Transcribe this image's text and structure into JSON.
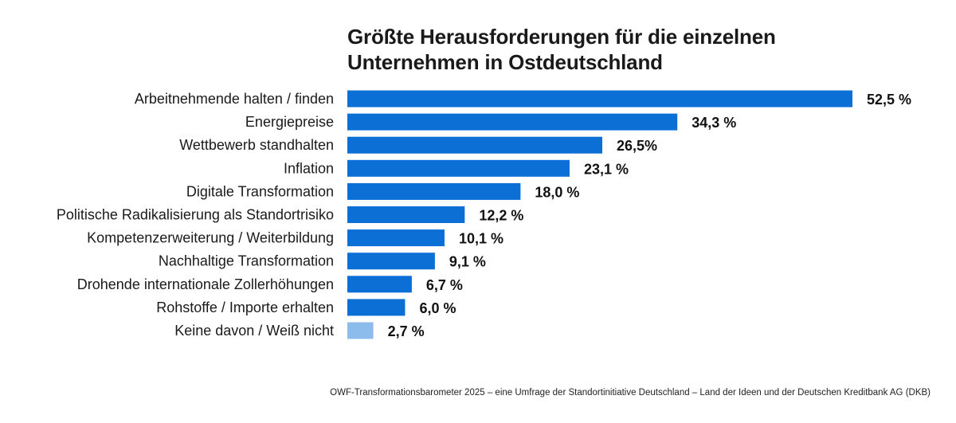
{
  "chart_data": {
    "type": "bar",
    "orientation": "horizontal",
    "title_lines": [
      "Größte Herausforderungen für die einzelnen",
      "Unternehmen in Ostdeutschland"
    ],
    "categories": [
      "Arbeitnehmende halten / finden",
      "Energiepreise",
      "Wettbewerb standhalten",
      "Inflation",
      "Digitale Transformation",
      "Politische Radikalisierung als Standortrisiko",
      "Kompetenzerweiterung / Weiterbildung",
      "Nachhaltige Transformation",
      "Drohende internationale Zollerhöhungen",
      "Rohstoffe / Importe erhalten",
      "Keine davon / Weiß nicht"
    ],
    "values": [
      52.5,
      34.3,
      26.5,
      23.1,
      18.0,
      12.2,
      10.1,
      9.1,
      6.7,
      6.0,
      2.7
    ],
    "value_labels": [
      "52,5 %",
      "34,3 %",
      "26,5%",
      "23,1 %",
      "18,0 %",
      "12,2 %",
      "10,1 %",
      "9,1 %",
      "6,7 %",
      "6,0 %",
      "2,7 %"
    ],
    "unit": "%",
    "xlim": [
      0,
      52.5
    ],
    "grid": false,
    "legend": "none",
    "colors": {
      "bar": "#0b6fd6",
      "bar_muted": "#8cbcec"
    },
    "muted_categories": [
      "Keine davon / Weiß nicht"
    ]
  },
  "source": "OWF-Transformationsbarometer 2025 – eine Umfrage der Standortinitiative Deutschland – Land der Ideen und der Deutschen Kreditbank AG (DKB)"
}
